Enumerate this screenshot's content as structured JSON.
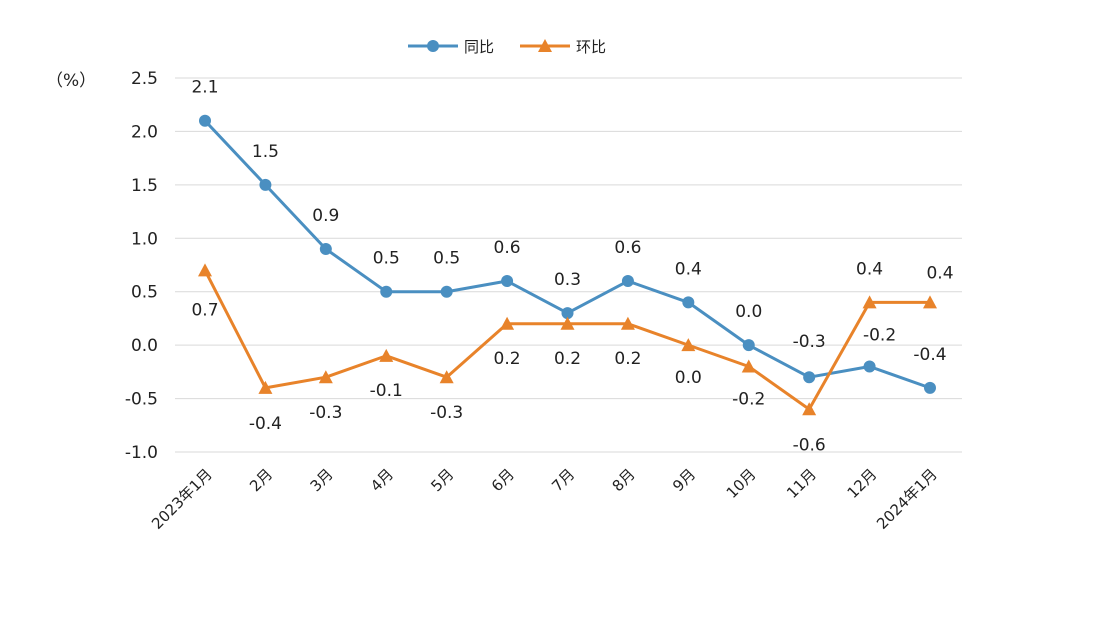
{
  "chart_data": {
    "type": "line",
    "title": "",
    "xlabel": "",
    "ylabel": "（%）",
    "ylim": [
      -1.0,
      2.5
    ],
    "yticks": [
      "2.5",
      "2.0",
      "1.5",
      "1.0",
      "0.5",
      "0.0",
      "-0.5",
      "-1.0"
    ],
    "grid": true,
    "legend_position": "top",
    "categories": [
      "2023年1月",
      "2月",
      "3月",
      "4月",
      "5月",
      "6月",
      "7月",
      "8月",
      "9月",
      "10月",
      "11月",
      "12月",
      "2024年1月"
    ],
    "series": [
      {
        "name": "同比",
        "color": "#4a8fc1",
        "marker": "circle",
        "values": [
          2.1,
          1.5,
          0.9,
          0.5,
          0.5,
          0.6,
          0.3,
          0.6,
          0.4,
          0.0,
          -0.3,
          -0.2,
          -0.4
        ],
        "labels": [
          "2.1",
          "1.5",
          "0.9",
          "0.5",
          "0.5",
          "0.6",
          "0.3",
          "0.6",
          "0.4",
          "0.0",
          "-0.3",
          "-0.2",
          "-0.4"
        ]
      },
      {
        "name": "环比",
        "color": "#e8832a",
        "marker": "triangle",
        "values": [
          0.7,
          -0.4,
          -0.3,
          -0.1,
          -0.3,
          0.2,
          0.2,
          0.2,
          0.0,
          -0.2,
          -0.6,
          0.4,
          0.4
        ],
        "labels": [
          "0.7",
          "-0.4",
          "-0.3",
          "-0.1",
          "-0.3",
          "0.2",
          "0.2",
          "0.2",
          "0.0",
          "-0.2",
          "-0.6",
          "0.4",
          "0.4"
        ]
      }
    ]
  }
}
